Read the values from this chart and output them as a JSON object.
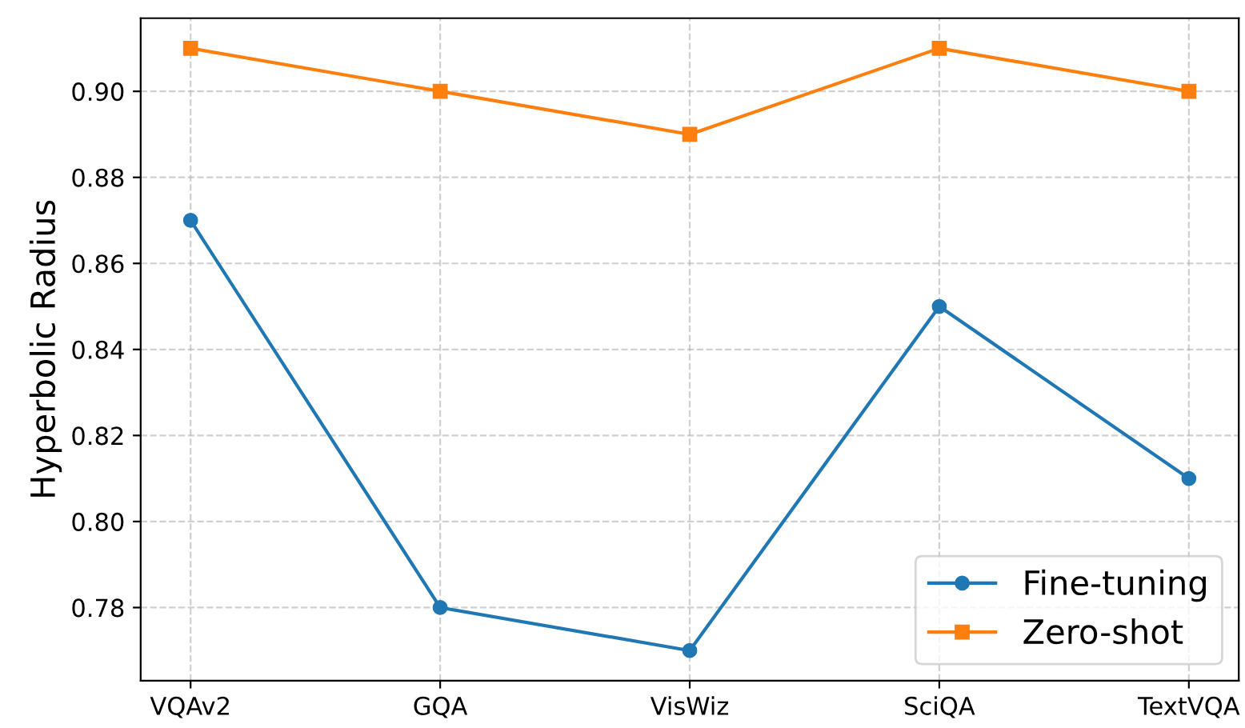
{
  "chart_data": {
    "type": "line",
    "ylabel": "Hyperbolic Radius",
    "categories": [
      "VQAv2",
      "GQA",
      "VisWiz",
      "SciQA",
      "TextVQA"
    ],
    "series": [
      {
        "name": "Fine-tuning",
        "color": "#1f77b4",
        "marker": "circle",
        "values": [
          0.87,
          0.78,
          0.77,
          0.85,
          0.81
        ]
      },
      {
        "name": "Zero-shot",
        "color": "#ff7f0e",
        "marker": "square",
        "values": [
          0.91,
          0.9,
          0.89,
          0.91,
          0.9
        ]
      }
    ],
    "ylim": [
      0.763,
      0.917
    ],
    "yticks": [
      {
        "value": 0.78,
        "label": "0.78"
      },
      {
        "value": 0.8,
        "label": "0.80"
      },
      {
        "value": 0.82,
        "label": "0.82"
      },
      {
        "value": 0.84,
        "label": "0.84"
      },
      {
        "value": 0.86,
        "label": "0.86"
      },
      {
        "value": 0.88,
        "label": "0.88"
      },
      {
        "value": 0.9,
        "label": "0.90"
      }
    ],
    "grid": true,
    "legend": "bottom right",
    "line_style": "solid"
  }
}
